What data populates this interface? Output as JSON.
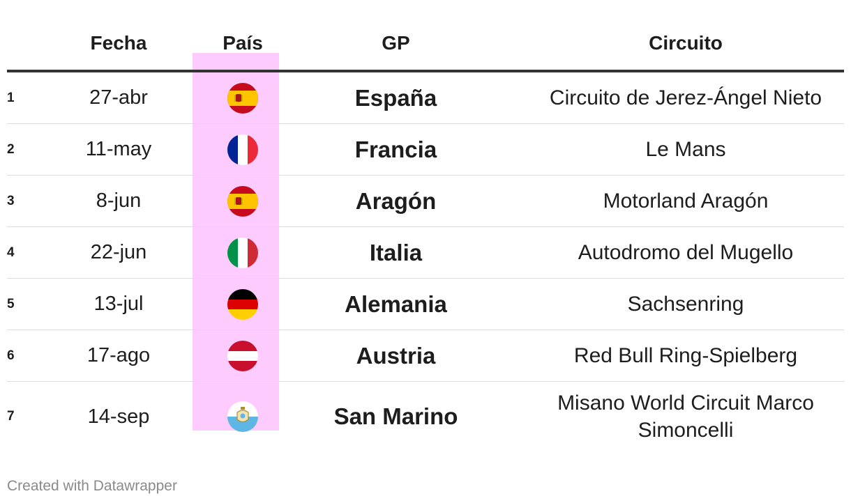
{
  "headers": {
    "fecha": "Fecha",
    "pais": "País",
    "gp": "GP",
    "circuito": "Circuito"
  },
  "rows": [
    {
      "num": "1",
      "fecha": "27-abr",
      "flag": "spain-flag-icon",
      "gp": "España",
      "circuito": "Circuito de Jerez-Ángel Nieto"
    },
    {
      "num": "2",
      "fecha": "11-may",
      "flag": "france-flag-icon",
      "gp": "Francia",
      "circuito": "Le Mans"
    },
    {
      "num": "3",
      "fecha": "8-jun",
      "flag": "spain-flag-icon",
      "gp": "Aragón",
      "circuito": "Motorland Aragón"
    },
    {
      "num": "4",
      "fecha": "22-jun",
      "flag": "italy-flag-icon",
      "gp": "Italia",
      "circuito": "Autodromo del Mugello"
    },
    {
      "num": "5",
      "fecha": "13-jul",
      "flag": "germany-flag-icon",
      "gp": "Alemania",
      "circuito": "Sachsenring"
    },
    {
      "num": "6",
      "fecha": "17-ago",
      "flag": "austria-flag-icon",
      "gp": "Austria",
      "circuito": "Red Bull Ring-Spielberg"
    },
    {
      "num": "7",
      "fecha": "14-sep",
      "flag": "san-marino-flag-icon",
      "gp": "San Marino",
      "circuito": "Misano World Circuit Marco Simoncelli"
    }
  ],
  "colors": {
    "highlight_column": "#fecbfe",
    "header_rule": "#333333",
    "row_rule": "#dcdcdc",
    "footer_text": "#8a8a8a"
  },
  "footer": {
    "credit": "Created with Datawrapper"
  }
}
